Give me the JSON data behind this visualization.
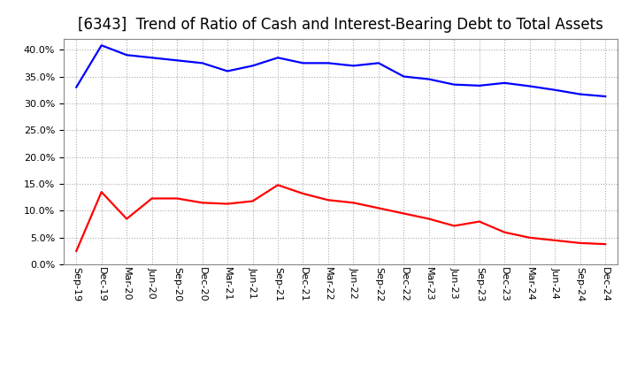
{
  "title": "[6343]  Trend of Ratio of Cash and Interest-Bearing Debt to Total Assets",
  "x_labels": [
    "Sep-19",
    "Dec-19",
    "Mar-20",
    "Jun-20",
    "Sep-20",
    "Dec-20",
    "Mar-21",
    "Jun-21",
    "Sep-21",
    "Dec-21",
    "Mar-22",
    "Jun-22",
    "Sep-22",
    "Dec-22",
    "Mar-23",
    "Jun-23",
    "Sep-23",
    "Dec-23",
    "Mar-24",
    "Jun-24",
    "Sep-24",
    "Dec-24"
  ],
  "cash": [
    2.5,
    13.5,
    8.5,
    12.3,
    12.3,
    11.5,
    11.3,
    11.8,
    14.8,
    13.2,
    12.0,
    11.5,
    10.5,
    9.5,
    8.5,
    7.2,
    8.0,
    6.0,
    5.0,
    4.5,
    4.0,
    3.8
  ],
  "ibd": [
    33.0,
    40.8,
    39.0,
    38.5,
    38.0,
    37.5,
    36.0,
    37.0,
    38.5,
    37.5,
    37.5,
    37.0,
    37.5,
    35.0,
    34.5,
    33.5,
    33.3,
    33.8,
    33.2,
    32.5,
    31.7,
    31.3
  ],
  "cash_color": "#ff0000",
  "ibd_color": "#0000ff",
  "ylim": [
    0,
    42
  ],
  "yticks": [
    0.0,
    5.0,
    10.0,
    15.0,
    20.0,
    25.0,
    30.0,
    35.0,
    40.0
  ],
  "background_color": "#ffffff",
  "plot_bg_color": "#ffffff",
  "grid_color": "#aaaaaa",
  "title_fontsize": 12,
  "legend_fontsize": 10,
  "tick_fontsize": 8,
  "line_width": 1.6
}
